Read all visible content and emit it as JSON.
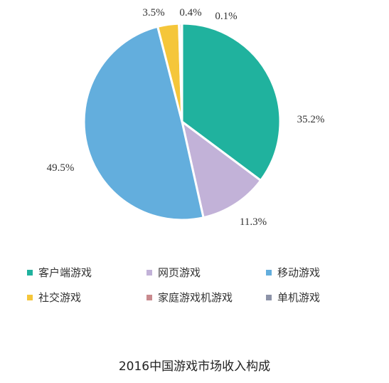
{
  "chart_data": {
    "type": "pie",
    "title": "2016中国游戏市场收入构成",
    "categories": [
      "客户端游戏",
      "网页游戏",
      "移动游戏",
      "社交游戏",
      "家庭游戏机游戏",
      "单机游戏"
    ],
    "values": [
      35.2,
      11.3,
      49.5,
      3.5,
      0.4,
      0.1
    ],
    "labels": [
      "35.2%",
      "11.3%",
      "49.5%",
      "3.5%",
      "0.4%",
      "0.1%"
    ],
    "colors": [
      "#20b29e",
      "#c2b2d8",
      "#63aedd",
      "#f5c63a",
      "#c98a8e",
      "#8d93a8"
    ],
    "legend_position": "bottom"
  }
}
